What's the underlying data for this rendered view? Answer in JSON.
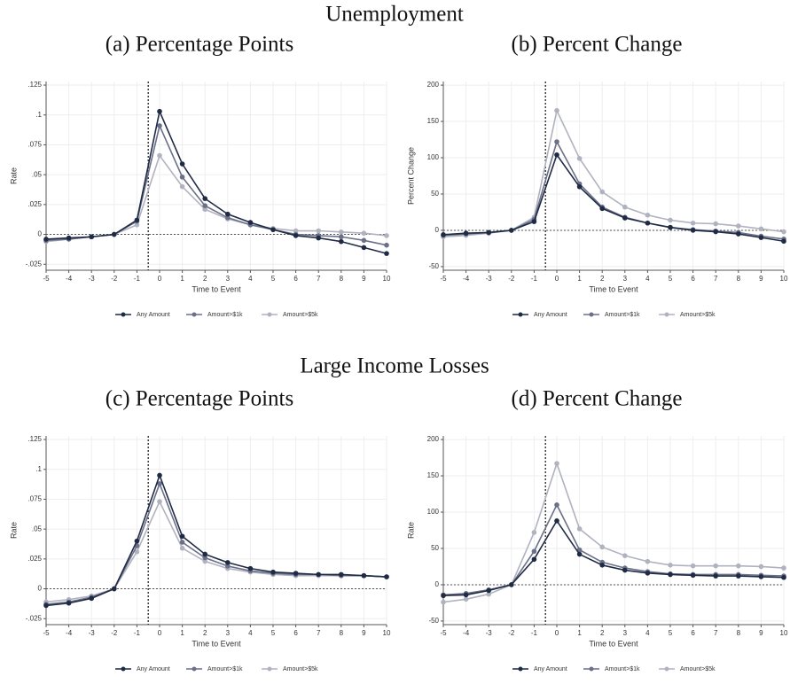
{
  "sections": [
    {
      "title": "Unemployment"
    },
    {
      "title": "Large Income Losses"
    }
  ],
  "chart_data": [
    {
      "type": "line",
      "title": "(a) Percentage Points",
      "x_label": "Time to Event",
      "y_label": "Rate",
      "x": [
        -5,
        -4,
        -3,
        -2,
        -1,
        0,
        1,
        2,
        3,
        4,
        5,
        6,
        7,
        8,
        9,
        10
      ],
      "xlim": [
        -5,
        10
      ],
      "xticks": [
        -5,
        -4,
        -3,
        -2,
        -1,
        0,
        1,
        2,
        3,
        4,
        5,
        6,
        7,
        8,
        9,
        10
      ],
      "ylim": [
        -0.03,
        0.128
      ],
      "yticks": [
        {
          "value": -0.025,
          "label": "-.025"
        },
        0,
        {
          "value": 0.025,
          "label": ".025"
        },
        {
          "value": 0.05,
          "label": ".05"
        },
        {
          "value": 0.075,
          "label": ".075"
        },
        {
          "value": 0.1,
          "label": ".1"
        },
        {
          "value": 0.125,
          "label": ".125"
        }
      ],
      "vline": -0.5,
      "hline": 0,
      "grid": true,
      "series": [
        {
          "name": "Any Amount",
          "color": "#1f2a44",
          "values": [
            -0.004,
            -0.003,
            -0.002,
            0,
            0.012,
            0.103,
            0.059,
            0.03,
            0.017,
            0.01,
            0.004,
            -0.001,
            -0.003,
            -0.006,
            -0.011,
            -0.016
          ]
        },
        {
          "name": "Amount>$1k",
          "color": "#6b7088",
          "values": [
            -0.005,
            -0.004,
            -0.002,
            0,
            0.011,
            0.091,
            0.048,
            0.024,
            0.014,
            0.008,
            0.004,
            0.0,
            -0.001,
            -0.002,
            -0.005,
            -0.009
          ]
        },
        {
          "name": "Amount>$5k",
          "color": "#b0b3bf",
          "values": [
            -0.006,
            -0.004,
            -0.002,
            0,
            0.008,
            0.066,
            0.04,
            0.021,
            0.013,
            0.008,
            0.005,
            0.003,
            0.003,
            0.002,
            0.001,
            -0.001
          ]
        }
      ]
    },
    {
      "type": "line",
      "title": "(b) Percent Change",
      "x_label": "Time to Event",
      "y_label": "Percent Change",
      "x": [
        -5,
        -4,
        -3,
        -2,
        -1,
        0,
        1,
        2,
        3,
        4,
        5,
        6,
        7,
        8,
        9,
        10
      ],
      "xlim": [
        -5,
        10
      ],
      "xticks": [
        -5,
        -4,
        -3,
        -2,
        -1,
        0,
        1,
        2,
        3,
        4,
        5,
        6,
        7,
        8,
        9,
        10
      ],
      "ylim": [
        -55,
        205
      ],
      "yticks": [
        -50,
        0,
        50,
        100,
        150,
        200
      ],
      "vline": -0.5,
      "hline": 0,
      "grid": true,
      "series": [
        {
          "name": "Any Amount",
          "color": "#1f2a44",
          "values": [
            -6,
            -4,
            -3,
            0,
            12,
            104,
            60,
            30,
            17,
            10,
            4,
            0,
            -2,
            -5,
            -10,
            -15
          ]
        },
        {
          "name": "Amount>$1k",
          "color": "#6b7088",
          "values": [
            -7,
            -5,
            -3,
            0,
            15,
            122,
            64,
            32,
            18,
            10,
            4,
            1,
            -1,
            -3,
            -8,
            -12
          ]
        },
        {
          "name": "Amount>$5k",
          "color": "#b0b3bf",
          "values": [
            -9,
            -7,
            -4,
            0,
            18,
            165,
            99,
            53,
            32,
            21,
            14,
            10,
            9,
            6,
            2,
            -2
          ]
        }
      ]
    },
    {
      "type": "line",
      "title": "(c) Percentage Points",
      "x_label": "Time to Event",
      "y_label": "Rate",
      "x": [
        -5,
        -4,
        -3,
        -2,
        -1,
        0,
        1,
        2,
        3,
        4,
        5,
        6,
        7,
        8,
        9,
        10
      ],
      "xlim": [
        -5,
        10
      ],
      "xticks": [
        -5,
        -4,
        -3,
        -2,
        -1,
        0,
        1,
        2,
        3,
        4,
        5,
        6,
        7,
        8,
        9,
        10
      ],
      "ylim": [
        -0.03,
        0.128
      ],
      "yticks": [
        {
          "value": -0.025,
          "label": "-.025"
        },
        0,
        {
          "value": 0.025,
          "label": ".025"
        },
        {
          "value": 0.05,
          "label": ".05"
        },
        {
          "value": 0.075,
          "label": ".075"
        },
        {
          "value": 0.1,
          "label": ".1"
        },
        {
          "value": 0.125,
          "label": ".125"
        }
      ],
      "vline": -0.5,
      "hline": 0,
      "grid": true,
      "series": [
        {
          "name": "Any Amount",
          "color": "#1f2a44",
          "values": [
            -0.014,
            -0.012,
            -0.008,
            0,
            0.04,
            0.095,
            0.044,
            0.029,
            0.022,
            0.017,
            0.014,
            0.013,
            0.012,
            0.012,
            0.011,
            0.01
          ]
        },
        {
          "name": "Amount>$1k",
          "color": "#6b7088",
          "values": [
            -0.013,
            -0.011,
            -0.007,
            0,
            0.036,
            0.088,
            0.039,
            0.026,
            0.019,
            0.015,
            0.013,
            0.012,
            0.012,
            0.011,
            0.011,
            0.01
          ]
        },
        {
          "name": "Amount>$5k",
          "color": "#b0b3bf",
          "values": [
            -0.011,
            -0.009,
            -0.006,
            0,
            0.031,
            0.073,
            0.034,
            0.023,
            0.017,
            0.014,
            0.012,
            0.011,
            0.011,
            0.011,
            0.011,
            0.01
          ]
        }
      ]
    },
    {
      "type": "line",
      "title": "(d) Percent Change",
      "x_label": "Time to Event",
      "y_label": "Rate",
      "x": [
        -5,
        -4,
        -3,
        -2,
        -1,
        0,
        1,
        2,
        3,
        4,
        5,
        6,
        7,
        8,
        9,
        10
      ],
      "xlim": [
        -5,
        10
      ],
      "xticks": [
        -5,
        -4,
        -3,
        -2,
        -1,
        0,
        1,
        2,
        3,
        4,
        5,
        6,
        7,
        8,
        9,
        10
      ],
      "ylim": [
        -55,
        205
      ],
      "yticks": [
        -50,
        0,
        50,
        100,
        150,
        200
      ],
      "vline": -0.5,
      "hline": 0,
      "grid": true,
      "series": [
        {
          "name": "Any Amount",
          "color": "#1f2a44",
          "values": [
            -15,
            -14,
            -8,
            0,
            35,
            88,
            42,
            27,
            20,
            16,
            14,
            13,
            12,
            12,
            11,
            10
          ]
        },
        {
          "name": "Amount>$1k",
          "color": "#6b7088",
          "values": [
            -14,
            -12,
            -7,
            0,
            46,
            110,
            48,
            31,
            23,
            18,
            15,
            14,
            14,
            14,
            13,
            12
          ]
        },
        {
          "name": "Amount>$5k",
          "color": "#b0b3bf",
          "values": [
            -24,
            -20,
            -13,
            0,
            72,
            167,
            77,
            52,
            40,
            32,
            27,
            26,
            26,
            26,
            25,
            23
          ]
        }
      ]
    }
  ]
}
